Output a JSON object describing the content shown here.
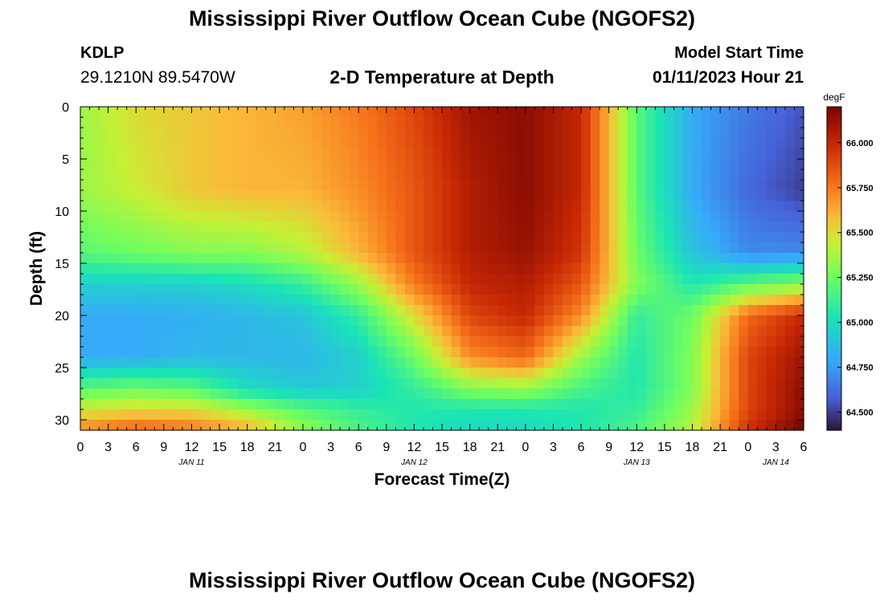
{
  "header": {
    "title": "Mississippi River Outflow Ocean Cube (NGOFS2)",
    "station_id": "KDLP",
    "coords": "29.1210N  89.5470W",
    "subtitle": "2-D Temperature at Depth",
    "model_start_label": "Model Start Time",
    "model_start_value": "01/11/2023 Hour 21"
  },
  "footer": {
    "title": "Mississippi River Outflow Ocean Cube (NGOFS2)"
  },
  "chart_data": {
    "type": "heatmap",
    "title": "2-D Temperature at Depth",
    "xlabel": "Forecast Time(Z)",
    "ylabel": "Depth (ft)",
    "x_tick_labels": [
      "0",
      "3",
      "6",
      "9",
      "12",
      "15",
      "18",
      "21",
      "0",
      "3",
      "6",
      "9",
      "12",
      "15",
      "18",
      "21",
      "0",
      "3",
      "6",
      "9",
      "12",
      "15",
      "18",
      "21",
      "0",
      "3",
      "6"
    ],
    "day_labels": [
      {
        "label": "JAN 11",
        "hour": 12
      },
      {
        "label": "JAN 12",
        "hour": 36
      },
      {
        "label": "JAN 13",
        "hour": 60
      },
      {
        "label": "JAN 14",
        "hour": 75
      }
    ],
    "xlim_hours": [
      0,
      78
    ],
    "y_ticks": [
      0,
      5,
      10,
      15,
      20,
      25,
      30
    ],
    "ylim": [
      0,
      31
    ],
    "colorbar": {
      "unit": "degF",
      "range": [
        64.4,
        66.2
      ],
      "ticks": [
        "66.000",
        "65.750",
        "65.500",
        "65.250",
        "65.000",
        "64.750",
        "64.500"
      ],
      "tick_values": [
        66.0,
        65.75,
        65.5,
        65.25,
        65.0,
        64.75,
        64.5
      ]
    },
    "grid_depths": [
      0,
      8,
      14,
      17,
      20,
      24,
      27,
      29,
      30.5
    ],
    "grid_hours": [
      0,
      6,
      12,
      18,
      24,
      30,
      36,
      42,
      48,
      54,
      60,
      66,
      72,
      78
    ],
    "temperature_grid": [
      [
        65.35,
        65.5,
        65.55,
        65.6,
        65.65,
        65.75,
        65.9,
        66.1,
        66.15,
        66.0,
        65.2,
        64.8,
        64.65,
        64.55
      ],
      [
        65.35,
        65.45,
        65.55,
        65.6,
        65.6,
        65.7,
        65.85,
        66.05,
        66.15,
        66.0,
        65.2,
        64.8,
        64.6,
        64.5
      ],
      [
        65.2,
        65.25,
        65.3,
        65.3,
        65.4,
        65.6,
        65.85,
        66.05,
        66.12,
        65.95,
        65.25,
        64.9,
        64.7,
        64.7
      ],
      [
        64.95,
        64.95,
        64.95,
        65.0,
        65.1,
        65.35,
        65.75,
        66.0,
        66.05,
        65.85,
        65.3,
        65.05,
        65.2,
        65.3
      ],
      [
        64.8,
        64.8,
        64.82,
        64.85,
        64.9,
        65.1,
        65.5,
        65.9,
        66.0,
        65.7,
        65.1,
        65.25,
        65.8,
        66.0
      ],
      [
        64.8,
        64.8,
        64.85,
        64.85,
        64.85,
        64.95,
        65.25,
        65.7,
        65.8,
        65.35,
        65.05,
        65.3,
        65.9,
        66.1
      ],
      [
        65.2,
        65.25,
        65.2,
        65.0,
        64.92,
        64.95,
        65.1,
        65.3,
        65.35,
        65.15,
        65.05,
        65.3,
        65.9,
        66.15
      ],
      [
        65.45,
        65.5,
        65.5,
        65.35,
        65.2,
        65.1,
        65.05,
        65.05,
        65.05,
        65.05,
        65.1,
        65.35,
        65.9,
        66.15
      ],
      [
        65.65,
        65.75,
        65.7,
        65.55,
        65.3,
        65.15,
        65.05,
        65.0,
        65.0,
        65.05,
        65.15,
        65.4,
        65.95,
        66.2
      ]
    ]
  }
}
